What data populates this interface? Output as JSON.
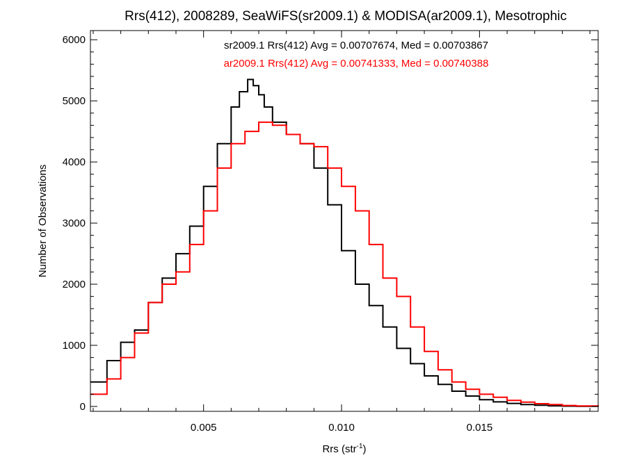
{
  "chart_data": {
    "type": "line",
    "step": true,
    "title": "Rrs(412), 2008289, SeaWiFS(sr2009.1) & MODISA(ar2009.1), Mesotrophic",
    "xlabel": "Rrs (str",
    "xlabel_sup": "-1",
    "xlabel_close": ")",
    "ylabel": "Number of Observations",
    "xlim": [
      0.0009,
      0.0193
    ],
    "ylim": [
      -80,
      6150
    ],
    "xticks": [
      0.005,
      0.01,
      0.015
    ],
    "xtick_labels": [
      "0.005",
      "0.010",
      "0.015"
    ],
    "yticks": [
      0,
      1000,
      2000,
      3000,
      4000,
      5000,
      6000
    ],
    "ytick_labels": [
      "0",
      "1000",
      "2000",
      "3000",
      "4000",
      "5000",
      "6000"
    ],
    "grid": false,
    "annotations": [
      {
        "text": "sr2009.1 Rrs(412) Avg = 0.00707674, Med = 0.00703867",
        "color": "#000000"
      },
      {
        "text": "ar2009.1 Rrs(412) Avg = 0.00741333, Med = 0.00740388",
        "color": "#ff0000"
      }
    ],
    "series": [
      {
        "color": "#000000",
        "x": [
          0.0009,
          0.0015,
          0.002,
          0.0025,
          0.003,
          0.0035,
          0.004,
          0.0045,
          0.005,
          0.0055,
          0.006,
          0.0063,
          0.0066,
          0.0068,
          0.007,
          0.0072,
          0.0075,
          0.008,
          0.0085,
          0.009,
          0.0095,
          0.01,
          0.0105,
          0.011,
          0.0115,
          0.012,
          0.0125,
          0.013,
          0.0135,
          0.014,
          0.0145,
          0.015,
          0.0155,
          0.016,
          0.0165,
          0.017,
          0.0175,
          0.018,
          0.0185,
          0.0193
        ],
        "y": [
          400,
          750,
          1050,
          1250,
          1700,
          2100,
          2500,
          2950,
          3600,
          4300,
          4900,
          5150,
          5350,
          5250,
          5100,
          4900,
          4650,
          4450,
          4300,
          3900,
          3300,
          2550,
          2000,
          1650,
          1300,
          950,
          700,
          500,
          360,
          250,
          170,
          110,
          75,
          50,
          30,
          20,
          10,
          5,
          2,
          0
        ]
      },
      {
        "color": "#ff0000",
        "x": [
          0.0009,
          0.0015,
          0.002,
          0.0025,
          0.003,
          0.0035,
          0.004,
          0.0045,
          0.005,
          0.0055,
          0.006,
          0.0065,
          0.007,
          0.0075,
          0.008,
          0.0085,
          0.009,
          0.0095,
          0.01,
          0.0105,
          0.011,
          0.0115,
          0.012,
          0.0125,
          0.013,
          0.0135,
          0.014,
          0.0145,
          0.015,
          0.0155,
          0.016,
          0.0165,
          0.017,
          0.0175,
          0.018,
          0.0185,
          0.0193
        ],
        "y": [
          200,
          450,
          800,
          1200,
          1700,
          2000,
          2200,
          2650,
          3200,
          3900,
          4300,
          4500,
          4650,
          4600,
          4450,
          4300,
          4250,
          3900,
          3600,
          3200,
          2650,
          2100,
          1800,
          1300,
          900,
          600,
          400,
          280,
          200,
          150,
          100,
          70,
          45,
          30,
          15,
          8,
          3
        ]
      }
    ]
  }
}
